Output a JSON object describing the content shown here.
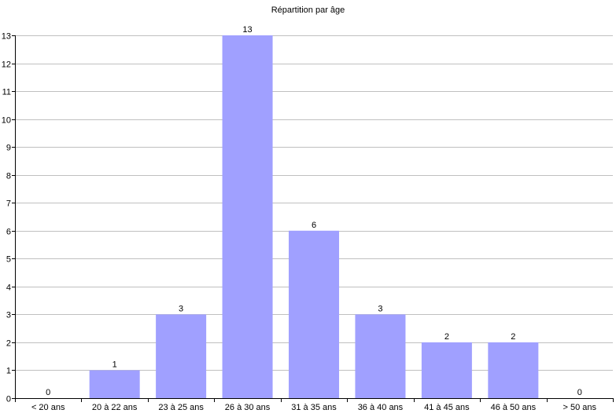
{
  "chart_data": {
    "type": "bar",
    "title": "Répartition par âge",
    "categories": [
      "< 20 ans",
      "20 à 22 ans",
      "23 à 25 ans",
      "26 à 30 ans",
      "31 à 35 ans",
      "36 à 40 ans",
      "41 à 45 ans",
      "46 à 50 ans",
      "> 50 ans"
    ],
    "values": [
      0,
      1,
      3,
      13,
      6,
      3,
      2,
      2,
      0
    ],
    "ylim": [
      0,
      13
    ],
    "yticks": [
      0,
      1,
      2,
      3,
      4,
      5,
      6,
      7,
      8,
      9,
      10,
      11,
      12,
      13
    ],
    "grid": true,
    "data_labels": true,
    "bar_color": "#a0a0ff",
    "grid_color": "#c0c0c0"
  }
}
